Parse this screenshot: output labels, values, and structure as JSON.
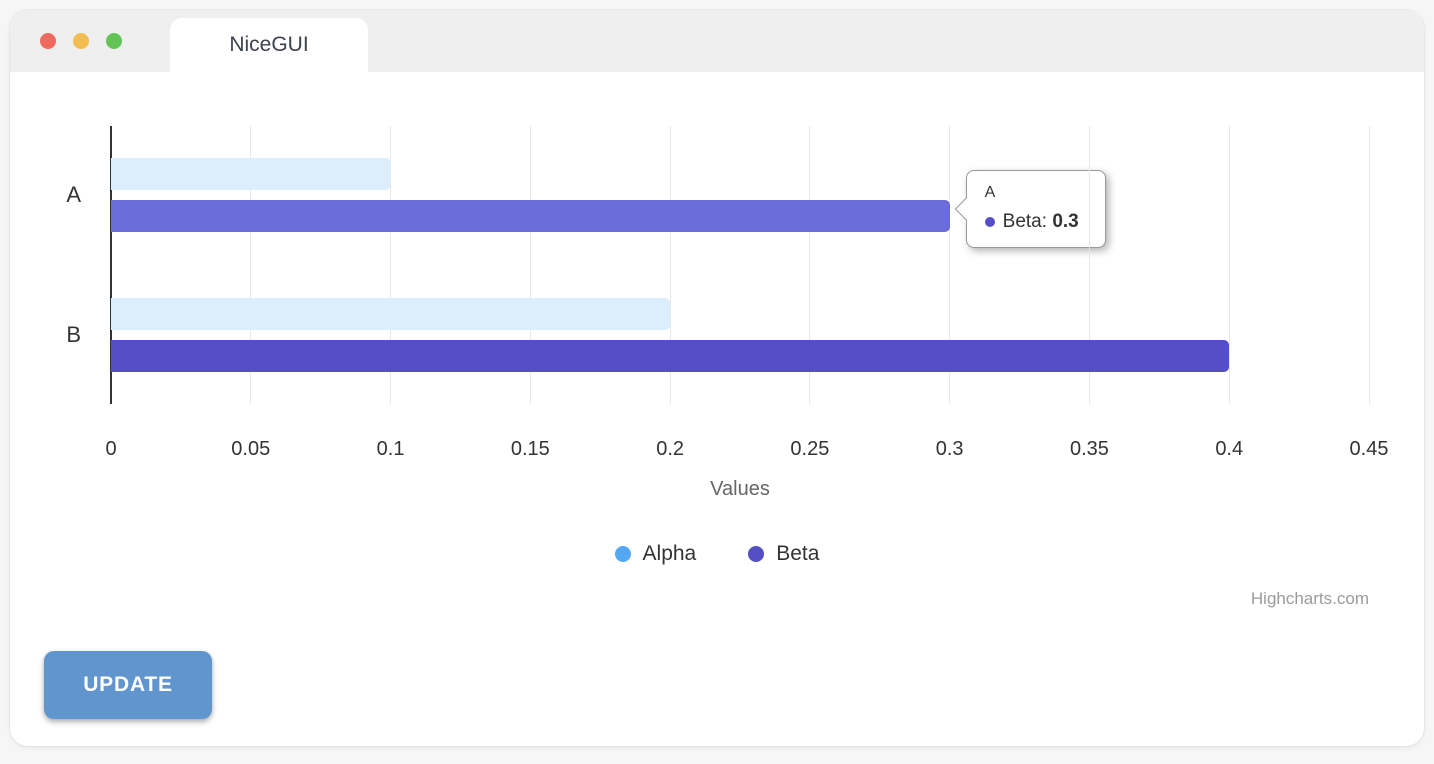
{
  "window": {
    "tab_title": "NiceGUI",
    "traffic_lights": [
      {
        "name": "close",
        "color": "#ee6a5e"
      },
      {
        "name": "minimize",
        "color": "#f4bd50"
      },
      {
        "name": "zoom",
        "color": "#61c454"
      }
    ]
  },
  "chart_data": {
    "type": "bar",
    "orientation": "horizontal",
    "title": "",
    "categories": [
      "A",
      "B"
    ],
    "series": [
      {
        "name": "Alpha",
        "values": [
          0.1,
          0.2
        ],
        "legend_color": "#54a8f2",
        "bar_colors": [
          "#dcedfc",
          "#dcedfc"
        ],
        "state": "inactive"
      },
      {
        "name": "Beta",
        "values": [
          0.3,
          0.4
        ],
        "legend_color": "#544fc5",
        "bar_colors": [
          "#6a6cd9",
          "#544fc5"
        ],
        "state": "hover"
      }
    ],
    "xlabel": "Values",
    "ylabel": "",
    "xlim": [
      0,
      0.45
    ],
    "tick_labels": [
      "0",
      "0.05",
      "0.1",
      "0.15",
      "0.2",
      "0.25",
      "0.3",
      "0.35",
      "0.4",
      "0.45"
    ],
    "grid": true,
    "legend_position": "bottom",
    "credits": "Highcharts.com",
    "axis_line_color": "#333333",
    "grid_color": "#e7e7e7"
  },
  "tooltip": {
    "category": "A",
    "series_name": "Beta",
    "value": "0.3",
    "value_num": 0.3,
    "marker_color": "#544fc5"
  },
  "button": {
    "label": "UPDATE",
    "color": "#6195ce"
  }
}
